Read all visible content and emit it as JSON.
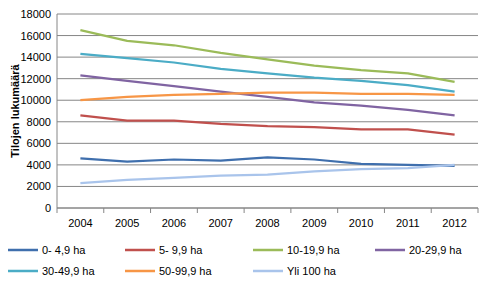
{
  "chart_data": {
    "type": "line",
    "y_label": "Tilojen lukumäärä",
    "categories": [
      "2004",
      "2005",
      "2006",
      "2007",
      "2008",
      "2009",
      "2010",
      "2011",
      "2012"
    ],
    "series": [
      {
        "name": "0- 4,9 ha",
        "color": "#3F6FAD",
        "values": [
          4600,
          4300,
          4500,
          4400,
          4700,
          4500,
          4100,
          4000,
          3900
        ]
      },
      {
        "name": "5- 9,9 ha",
        "color": "#C0504D",
        "values": [
          8600,
          8100,
          8100,
          7800,
          7600,
          7500,
          7300,
          7300,
          6800
        ]
      },
      {
        "name": "10-19,9 ha",
        "color": "#9BBB59",
        "values": [
          16500,
          15500,
          15100,
          14400,
          13800,
          13200,
          12800,
          12500,
          11700
        ]
      },
      {
        "name": "20-29,9 ha",
        "color": "#8064A2",
        "values": [
          12300,
          11800,
          11300,
          10800,
          10300,
          9800,
          9500,
          9100,
          8600
        ]
      },
      {
        "name": "30-49,9 ha",
        "color": "#4BACC6",
        "values": [
          14300,
          13900,
          13500,
          12900,
          12500,
          12100,
          11800,
          11400,
          10800
        ]
      },
      {
        "name": "50-99,9 ha",
        "color": "#F79646",
        "values": [
          10000,
          10300,
          10500,
          10600,
          10700,
          10700,
          10600,
          10600,
          10500
        ]
      },
      {
        "name": "Yli 100 ha",
        "color": "#A9C4EB",
        "values": [
          2300,
          2600,
          2800,
          3000,
          3100,
          3400,
          3600,
          3700,
          4000
        ]
      }
    ],
    "ylim": [
      0,
      18000
    ],
    "yticks": [
      0,
      2000,
      4000,
      6000,
      8000,
      10000,
      12000,
      14000,
      16000,
      18000
    ],
    "grid": true,
    "legend": "bottom"
  }
}
